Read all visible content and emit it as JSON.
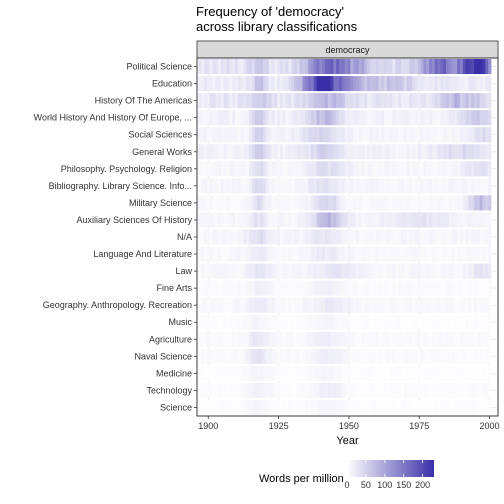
{
  "chart_data": {
    "type": "heatmap",
    "title_line1": "Frequency of 'democracy'",
    "title_line2": "across library classifications",
    "facet_label": "democracy",
    "xlabel": "Year",
    "x_ticks": [
      1900,
      1925,
      1950,
      1975,
      2000
    ],
    "xlim": [
      1896,
      2003
    ],
    "legend_title": "Words per million",
    "legend_ticks": [
      0,
      50,
      100,
      150,
      200
    ],
    "legend_range": [
      0,
      230
    ],
    "legend_position": "bottom",
    "colors": {
      "low": "#ffffff",
      "high": "#3b2fa8",
      "facet_strip": "#d9d9d9",
      "grid": "#ebebeb"
    },
    "categories": [
      "Political Science",
      "Education",
      "History Of The Americas",
      "World History And History Of Europe, ...",
      "Social Sciences",
      "General Works",
      "Philosophy.  Psychology.  Religion",
      "Bibliography.  Library Science.  Info...",
      "Military Science",
      "Auxiliary Sciences Of History",
      "N/A",
      "Language And Literature",
      "Law",
      "Fine Arts",
      "Geography.  Anthropology.  Recreation",
      "Music",
      "Agriculture",
      "Naval Science",
      "Medicine",
      "Technology",
      "Science"
    ],
    "year_range": [
      1897,
      2000
    ],
    "series_profiles": [
      {
        "name": "Political Science",
        "base": 30,
        "peaks": [
          [
            1918,
            45,
            2
          ],
          [
            1941,
            110,
            5
          ],
          [
            1950,
            80,
            6
          ],
          [
            1985,
            120,
            8
          ],
          [
            1996,
            200,
            3
          ]
        ]
      },
      {
        "name": "Education",
        "base": 20,
        "peaks": [
          [
            1918,
            50,
            2
          ],
          [
            1936,
            90,
            4
          ],
          [
            1941,
            210,
            2
          ],
          [
            1946,
            100,
            5
          ],
          [
            1960,
            50,
            10
          ]
        ]
      },
      {
        "name": "History Of The Americas",
        "base": 25,
        "peaks": [
          [
            1918,
            35,
            3
          ],
          [
            1943,
            55,
            5
          ],
          [
            1990,
            50,
            6
          ]
        ]
      },
      {
        "name": "World History And History Of Europe, ...",
        "base": 15,
        "peaks": [
          [
            1918,
            50,
            2
          ],
          [
            1941,
            60,
            4
          ],
          [
            1995,
            45,
            4
          ]
        ]
      },
      {
        "name": "Social Sciences",
        "base": 12,
        "peaks": [
          [
            1918,
            40,
            2
          ],
          [
            1940,
            35,
            5
          ],
          [
            1998,
            30,
            3
          ]
        ]
      },
      {
        "name": "General Works",
        "base": 15,
        "peaks": [
          [
            1918,
            45,
            2
          ],
          [
            1941,
            40,
            4
          ],
          [
            1990,
            25,
            6
          ]
        ]
      },
      {
        "name": "Philosophy.  Psychology.  Religion",
        "base": 10,
        "peaks": [
          [
            1918,
            30,
            2
          ],
          [
            1942,
            30,
            5
          ],
          [
            1996,
            25,
            4
          ]
        ]
      },
      {
        "name": "Bibliography.  Library Science.  Info...",
        "base": 10,
        "peaks": [
          [
            1918,
            30,
            2
          ],
          [
            1941,
            25,
            4
          ]
        ]
      },
      {
        "name": "Military Science",
        "base": 8,
        "peaks": [
          [
            1918,
            30,
            2
          ],
          [
            1942,
            45,
            3
          ],
          [
            1997,
            70,
            3
          ]
        ]
      },
      {
        "name": "Auxiliary Sciences Of History",
        "base": 10,
        "peaks": [
          [
            1918,
            25,
            2
          ],
          [
            1943,
            70,
            4
          ],
          [
            1975,
            20,
            8
          ]
        ]
      },
      {
        "name": "N/A",
        "base": 10,
        "peaks": [
          [
            1918,
            25,
            3
          ],
          [
            1941,
            20,
            4
          ]
        ]
      },
      {
        "name": "Language And Literature",
        "base": 8,
        "peaks": [
          [
            1918,
            15,
            3
          ],
          [
            1942,
            15,
            4
          ]
        ]
      },
      {
        "name": "Law",
        "base": 10,
        "peaks": [
          [
            1918,
            20,
            3
          ],
          [
            1945,
            20,
            5
          ],
          [
            1998,
            25,
            3
          ]
        ]
      },
      {
        "name": "Fine Arts",
        "base": 5,
        "peaks": [
          [
            1918,
            12,
            3
          ],
          [
            1942,
            15,
            4
          ]
        ]
      },
      {
        "name": "Geography.  Anthropology.  Recreation",
        "base": 8,
        "peaks": [
          [
            1918,
            15,
            3
          ],
          [
            1944,
            15,
            5
          ]
        ]
      },
      {
        "name": "Music",
        "base": 3,
        "peaks": [
          [
            1918,
            10,
            3
          ],
          [
            1942,
            10,
            4
          ]
        ]
      },
      {
        "name": "Agriculture",
        "base": 6,
        "peaks": [
          [
            1918,
            20,
            3
          ],
          [
            1942,
            15,
            4
          ]
        ]
      },
      {
        "name": "Naval Science",
        "base": 5,
        "peaks": [
          [
            1918,
            25,
            3
          ],
          [
            1943,
            15,
            4
          ]
        ]
      },
      {
        "name": "Medicine",
        "base": 3,
        "peaks": [
          [
            1918,
            10,
            3
          ],
          [
            1942,
            8,
            4
          ]
        ]
      },
      {
        "name": "Technology",
        "base": 4,
        "peaks": [
          [
            1918,
            15,
            3
          ],
          [
            1943,
            15,
            4
          ]
        ]
      },
      {
        "name": "Science",
        "base": 3,
        "peaks": [
          [
            1918,
            10,
            3
          ],
          [
            1942,
            8,
            4
          ]
        ]
      }
    ]
  }
}
